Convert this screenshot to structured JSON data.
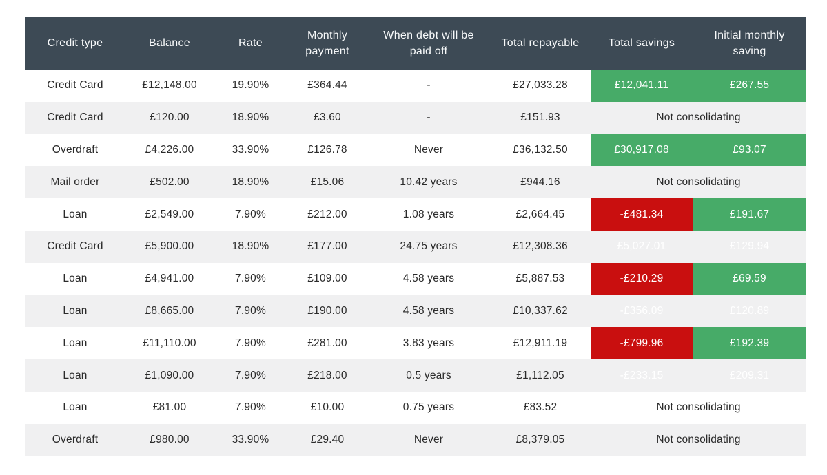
{
  "colors": {
    "header_bg": "#3d4a55",
    "alt_row_bg": "#f0f0f1",
    "positive_green": "#47ab68",
    "negative_red": "#c90f0f",
    "header_text": "#f7f9fa",
    "body_text": "#2b2b2b"
  },
  "labels": {
    "not_consolidating": "Not consolidating"
  },
  "chart_data": {
    "type": "table",
    "columns": [
      "Credit type",
      "Balance",
      "Rate",
      "Monthly payment",
      "When debt will be paid off",
      "Total repayable",
      "Total savings",
      "Initial monthly saving"
    ],
    "rows": [
      {
        "cells": [
          "Credit Card",
          "£12,148.00",
          "19.90%",
          "£364.44",
          "-",
          "£27,033.28"
        ],
        "consolidating": true,
        "total_savings": "£12,041.11",
        "total_savings_status": "positive",
        "initial_monthly_saving": "£267.55"
      },
      {
        "cells": [
          "Credit Card",
          "£120.00",
          "18.90%",
          "£3.60",
          "-",
          "£151.93"
        ],
        "consolidating": false
      },
      {
        "cells": [
          "Overdraft",
          "£4,226.00",
          "33.90%",
          "£126.78",
          "Never",
          "£36,132.50"
        ],
        "consolidating": true,
        "total_savings": "£30,917.08",
        "total_savings_status": "positive",
        "initial_monthly_saving": "£93.07"
      },
      {
        "cells": [
          "Mail order",
          "£502.00",
          "18.90%",
          "£15.06",
          "10.42 years",
          "£944.16"
        ],
        "consolidating": false
      },
      {
        "cells": [
          "Loan",
          "£2,549.00",
          "7.90%",
          "£212.00",
          "1.08 years",
          "£2,664.45"
        ],
        "consolidating": true,
        "total_savings": "-£481.34",
        "total_savings_status": "negative",
        "initial_monthly_saving": "£191.67"
      },
      {
        "cells": [
          "Credit Card",
          "£5,900.00",
          "18.90%",
          "£177.00",
          "24.75 years",
          "£12,308.36"
        ],
        "consolidating": true,
        "total_savings": "£5,027.01",
        "total_savings_status": "positive",
        "initial_monthly_saving": "£129.94"
      },
      {
        "cells": [
          "Loan",
          "£4,941.00",
          "7.90%",
          "£109.00",
          "4.58 years",
          "£5,887.53"
        ],
        "consolidating": true,
        "total_savings": "-£210.29",
        "total_savings_status": "negative",
        "initial_monthly_saving": "£69.59"
      },
      {
        "cells": [
          "Loan",
          "£8,665.00",
          "7.90%",
          "£190.00",
          "4.58 years",
          "£10,337.62"
        ],
        "consolidating": true,
        "total_savings": "-£356.09",
        "total_savings_status": "negative",
        "initial_monthly_saving": "£120.89"
      },
      {
        "cells": [
          "Loan",
          "£11,110.00",
          "7.90%",
          "£281.00",
          "3.83 years",
          "£12,911.19"
        ],
        "consolidating": true,
        "total_savings": "-£799.96",
        "total_savings_status": "negative",
        "initial_monthly_saving": "£192.39"
      },
      {
        "cells": [
          "Loan",
          "£1,090.00",
          "7.90%",
          "£218.00",
          "0.5 years",
          "£1,112.05"
        ],
        "consolidating": true,
        "total_savings": "-£233.15",
        "total_savings_status": "negative",
        "initial_monthly_saving": "£209.31"
      },
      {
        "cells": [
          "Loan",
          "£81.00",
          "7.90%",
          "£10.00",
          "0.75 years",
          "£83.52"
        ],
        "consolidating": false
      },
      {
        "cells": [
          "Overdraft",
          "£980.00",
          "33.90%",
          "£29.40",
          "Never",
          "£8,379.05"
        ],
        "consolidating": false
      }
    ]
  }
}
